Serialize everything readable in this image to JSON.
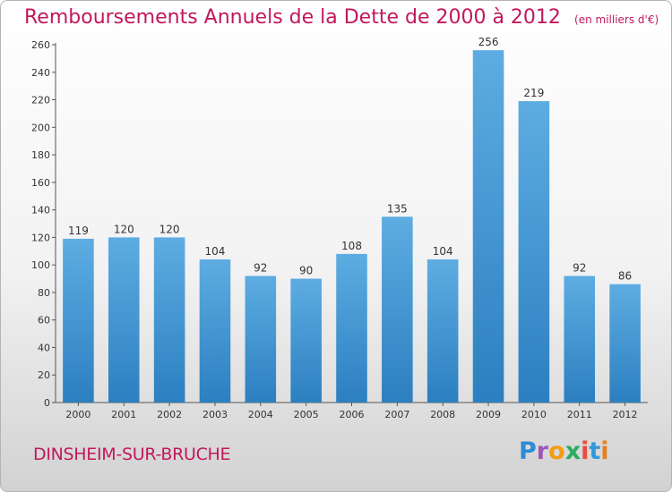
{
  "header": {
    "title": "Remboursements Annuels de la Dette de 2000 à 2012",
    "unit": "(en milliers d'€)"
  },
  "commune": "DINSHEIM-SUR-BRUCHE",
  "logo": {
    "text": "Proxiti"
  },
  "colors": {
    "title": "#c2185b",
    "bar_top": "#5dade2",
    "bar_bottom": "#2c7fc0"
  },
  "chart_data": {
    "type": "bar",
    "title": "Remboursements Annuels de la Dette de 2000 à 2012",
    "subtitle": "(en milliers d'€)",
    "xlabel": "",
    "ylabel": "",
    "categories": [
      "2000",
      "2001",
      "2002",
      "2003",
      "2004",
      "2005",
      "2006",
      "2007",
      "2008",
      "2009",
      "2010",
      "2011",
      "2012"
    ],
    "values": [
      119,
      120,
      120,
      104,
      92,
      90,
      108,
      135,
      104,
      256,
      219,
      92,
      86
    ],
    "ylim": [
      0,
      260
    ],
    "yticks": [
      0,
      20,
      40,
      60,
      80,
      100,
      120,
      140,
      160,
      180,
      200,
      220,
      240,
      260
    ],
    "grid": false,
    "legend": "none"
  }
}
